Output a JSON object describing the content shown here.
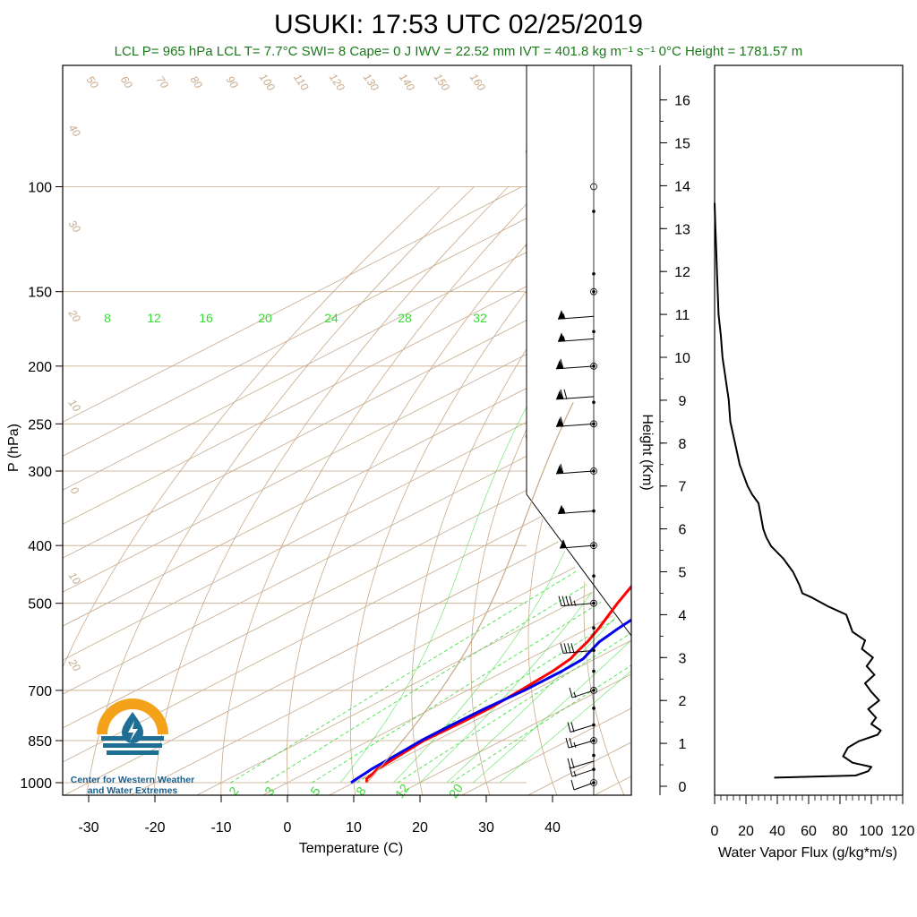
{
  "title": "USUKI: 17:53 UTC 02/25/2019",
  "stats": "LCL P= 965 hPa  LCL T= 7.7°C  SWI= 8  Cape= 0 J  IWV = 22.52 mm  IVT = 401.8 kg m⁻¹ s⁻¹  0°C Height = 1781.57 m",
  "logo": {
    "line1": "Center for Western Weather",
    "line2": "and Water Extremes"
  },
  "colors": {
    "temperature": "#ff0000",
    "dewpoint": "#0000ee",
    "isotherm_adiabat": "#c8a98a",
    "mixing_ratio": "#33dd33",
    "stats_text": "#1a7a1a",
    "logo_orange": "#f5a21b",
    "logo_blue": "#1f6e94"
  },
  "chart_data": [
    {
      "type": "line",
      "subtype": "skew-t log-p sounding",
      "title": "USUKI: 17:53 UTC 02/25/2019",
      "xlabel": "Temperature (C)",
      "ylabel": "P (hPa)",
      "x_ticks": [
        -30,
        -20,
        -10,
        0,
        10,
        20,
        30,
        40
      ],
      "y_ticks": [
        100,
        150,
        200,
        250,
        300,
        400,
        500,
        700,
        850,
        1000
      ],
      "y_scale": "log",
      "xlim": [
        -34,
        42
      ],
      "ylim": [
        1050,
        100
      ],
      "mixing_ratio_labels": [
        "8",
        "12",
        "16",
        "20",
        "24",
        "28",
        "32"
      ],
      "mixing_ratio_bottom_labels": [
        "2",
        "3",
        "5",
        "8",
        "12",
        "20"
      ],
      "adiabat_labels": [
        "50",
        "60",
        "70",
        "80",
        "90",
        "100",
        "110",
        "120",
        "130",
        "140",
        "150",
        "160"
      ],
      "isotherm_labels_left": [
        "40",
        "30",
        "20",
        "10",
        "0",
        "10",
        "20"
      ],
      "wet_bulb_labels_right": [
        "30",
        "20",
        "10",
        "0",
        "10",
        "20",
        "30"
      ],
      "series": [
        {
          "name": "Temperature",
          "color": "#ff0000",
          "p": [
            1000,
            985,
            965,
            950,
            900,
            850,
            800,
            750,
            700,
            650,
            620,
            600,
            580,
            550,
            500,
            450,
            400,
            350,
            300,
            250,
            230,
            225,
            220,
            210,
            205,
            200,
            195,
            190,
            180,
            175,
            170,
            165,
            160,
            155,
            150
          ],
          "t": [
            12.0,
            10.8,
            10.2,
            9.6,
            8.9,
            8.2,
            8.5,
            8.6,
            8.0,
            7.2,
            6.3,
            5.0,
            3.8,
            1.5,
            -3.0,
            -7.6,
            -13.8,
            -20.5,
            -27.8,
            -36.5,
            -40.4,
            -40.0,
            -38.6,
            -34.0,
            -31.0,
            -28.0,
            -25.3,
            -24.0,
            -22.0,
            -20.5,
            -18.0,
            -15.0,
            -13.0,
            -11.0,
            -9.5
          ]
        },
        {
          "name": "Dewpoint",
          "color": "#0000ee",
          "p": [
            1000,
            985,
            965,
            950,
            900,
            850,
            800,
            750,
            700,
            650,
            620,
            600,
            580,
            550,
            520,
            500,
            450,
            400,
            350,
            300,
            280,
            250,
            230,
            220,
            215,
            210,
            205,
            200,
            195,
            190,
            180,
            170,
            165,
            160,
            155,
            152,
            150
          ],
          "t": [
            9.6,
            9.3,
            9.0,
            8.7,
            8.3,
            7.8,
            7.8,
            8.0,
            8.6,
            8.6,
            8.2,
            6.9,
            5.6,
            4.5,
            3.6,
            1.7,
            -2.4,
            -7.8,
            -14.8,
            -21.7,
            -24.7,
            -29.8,
            -33.8,
            -36.0,
            -36.3,
            -35.5,
            -44.0,
            -51.5,
            -49.5,
            -51.0,
            -48.0,
            -44.5,
            -41.5,
            -39.5,
            -38.5,
            -41.0,
            -42.0
          ]
        }
      ]
    },
    {
      "type": "line",
      "subtype": "wind barbs",
      "p": [
        1000,
        950,
        920,
        850,
        800,
        700,
        600,
        500,
        400,
        350,
        300,
        250,
        225,
        200,
        180,
        165
      ],
      "speed_kt": [
        10,
        15,
        20,
        25,
        20,
        15,
        40,
        45,
        50,
        55,
        60,
        60,
        70,
        60,
        55,
        55
      ]
    },
    {
      "type": "line",
      "title": "",
      "xlabel": "Water Vapor Flux (g/kg*m/s)",
      "ylabel": "Height (Km)",
      "x_ticks": [
        0,
        20,
        40,
        60,
        80,
        100,
        120
      ],
      "y_ticks": [
        0,
        1,
        2,
        3,
        4,
        5,
        6,
        7,
        8,
        9,
        10,
        11,
        12,
        13,
        14,
        15,
        16
      ],
      "xlim": [
        0,
        120
      ],
      "ylim": [
        0,
        16.4
      ],
      "series": [
        {
          "name": "Water Vapor Flux",
          "color": "#000000",
          "height_km": [
            0.2,
            0.25,
            0.35,
            0.45,
            0.55,
            0.7,
            0.9,
            1.05,
            1.2,
            1.3,
            1.45,
            1.6,
            1.8,
            2.0,
            2.2,
            2.4,
            2.6,
            2.8,
            3.0,
            3.2,
            3.4,
            3.6,
            3.8,
            4.0,
            4.2,
            4.4,
            4.5,
            4.7,
            5.0,
            5.3,
            5.6,
            5.8,
            6.0,
            6.4,
            6.6,
            6.8,
            7.0,
            7.5,
            8.0,
            8.5,
            9.0,
            9.5,
            10.0,
            10.5,
            11.0,
            11.5,
            12.0,
            12.5,
            13.0,
            13.6
          ],
          "flux": [
            38,
            90,
            98,
            100,
            88,
            82,
            85,
            92,
            104,
            106,
            100,
            103,
            98,
            105,
            100,
            96,
            102,
            97,
            101,
            94,
            96,
            88,
            86,
            84,
            72,
            62,
            56,
            54,
            50,
            44,
            36,
            33,
            31,
            29,
            28,
            24,
            21,
            16,
            13,
            10,
            9,
            7,
            5,
            4,
            2.5,
            2,
            1.5,
            1,
            0.5,
            0
          ]
        }
      ]
    }
  ]
}
